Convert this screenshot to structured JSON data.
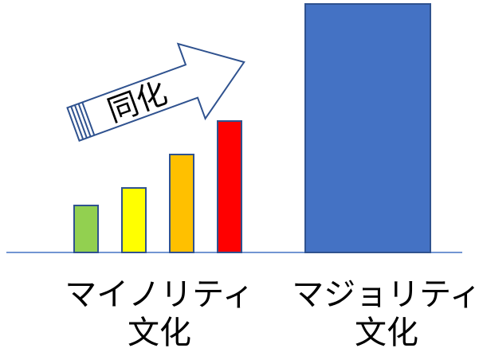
{
  "arrow_label": "同化",
  "minority_caption": {
    "line1": "マイノリティ",
    "line2": "文化"
  },
  "majority_caption": {
    "line1": "マジョリティ",
    "line2": "文化"
  },
  "colors": {
    "baseline": "#4472c4",
    "bar_stroke": "#2f528f",
    "minority_bars": [
      "#92d050",
      "#ffff00",
      "#ffc000",
      "#ff0000"
    ],
    "majority_bar": "#4472c4",
    "arrow_stroke": "#2f528f",
    "arrow_fill": "#ffffff"
  }
}
